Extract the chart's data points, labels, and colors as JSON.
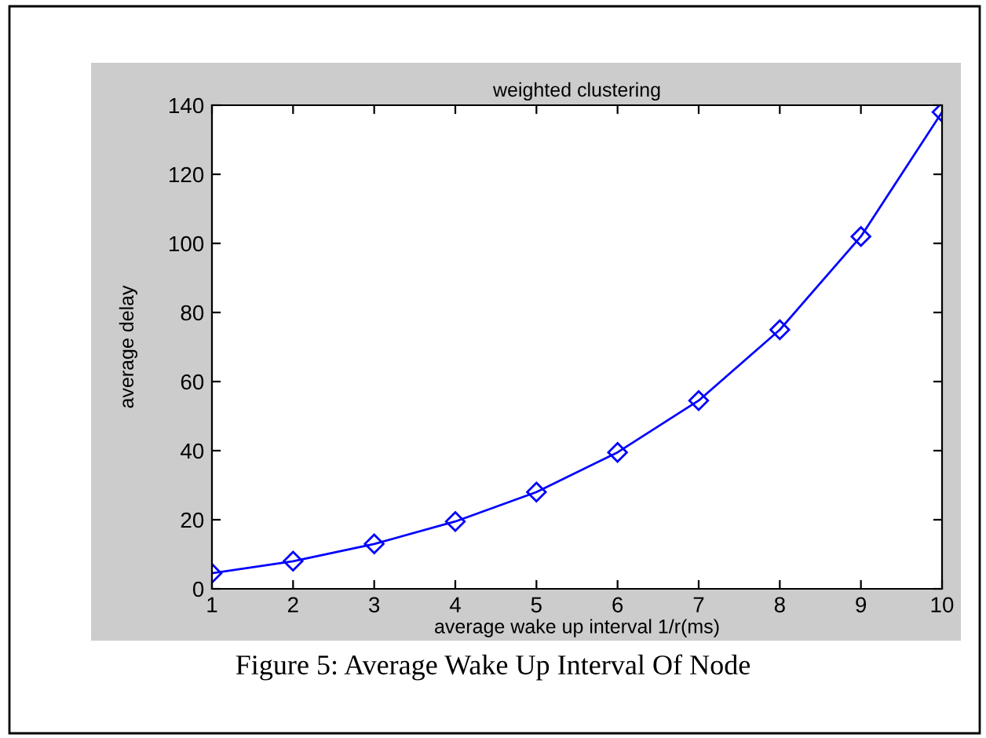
{
  "chart_data": {
    "type": "line",
    "title": "weighted clustering",
    "xlabel": "average wake up interval 1/r(ms)",
    "ylabel": "average delay",
    "x": [
      1,
      2,
      3,
      4,
      5,
      6,
      7,
      8,
      9,
      10
    ],
    "series": [
      {
        "color": "#0000ff",
        "values": [
          4.5,
          8,
          13,
          19.5,
          28,
          39.5,
          54.5,
          75,
          102,
          138
        ]
      }
    ],
    "xlim": [
      1,
      10
    ],
    "xticks": [
      1,
      2,
      3,
      4,
      5,
      6,
      7,
      8,
      9,
      10
    ],
    "ylim": [
      0,
      140
    ],
    "yticks": [
      0,
      20,
      40,
      60,
      80,
      100,
      120,
      140
    ],
    "marker": "diamond",
    "line_style": "solid",
    "grid": false,
    "legend": false,
    "annotations": [
      "Figure 5: Average Wake Up Interval Of Node"
    ]
  }
}
